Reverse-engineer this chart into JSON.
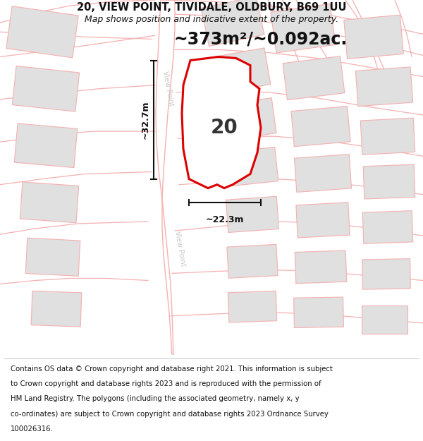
{
  "title_line1": "20, VIEW POINT, TIVIDALE, OLDBURY, B69 1UU",
  "title_line2": "Map shows position and indicative extent of the property.",
  "area_label": "~373m²/~0.092ac.",
  "property_number": "20",
  "width_label": "~22.3m",
  "height_label": "~32.7m",
  "street_label": "View Point",
  "footer": "Contains OS data © Crown copyright and database right 2021. This information is subject to Crown copyright and database rights 2023 and is reproduced with the permission of HM Land Registry. The polygons (including the associated geometry, namely x, y co-ordinates) are subject to Crown copyright and database rights 2023 Ordnance Survey 100026316.",
  "bg_color": "#f2f2f2",
  "road_fill_color": "#ffffff",
  "building_color": "#e0e0e0",
  "road_line_color": "#f5b0b0",
  "property_fill": "#ffffff",
  "property_edge": "#dd0000",
  "dim_line_color": "#111111",
  "title_fontsize": 10.5,
  "subtitle_fontsize": 9,
  "area_fontsize": 17,
  "property_label_fontsize": 20,
  "footer_fontsize": 7.3,
  "dim_label_fontsize": 9,
  "street_label_color": "#c8c8c8",
  "footer_sep_color": "#cccccc"
}
